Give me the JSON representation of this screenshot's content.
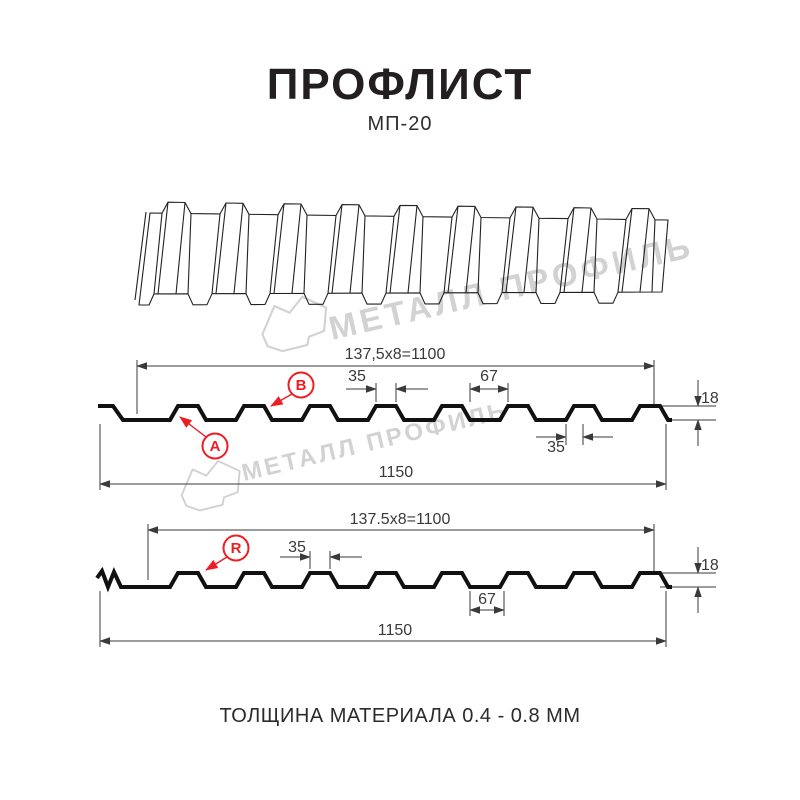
{
  "header": {
    "title": "ПРОФЛИСТ",
    "subtitle": "МП-20"
  },
  "footer": {
    "thickness_note": "ТОЛЩИНА МАТЕРИАЛА 0.4 - 0.8 ММ"
  },
  "watermark": {
    "text": "МЕТАЛЛ ПРОФИЛЬ",
    "color": "#d2d2d2",
    "gem_icon": "brand-gem-icon"
  },
  "colors": {
    "accent_red": "#ee1c23",
    "line_black": "#1a1a1a",
    "dim_gray": "#3a3a3a"
  },
  "diagram_top": {
    "coverage_width": "137,5x8=1100",
    "rib_top_width": "35",
    "valley_width": "67",
    "rib_bottom_width": "35",
    "profile_height": "18",
    "overall_width": "1150",
    "labels": {
      "a": "A",
      "b": "B"
    }
  },
  "diagram_bottom": {
    "coverage_width": "137.5x8=1100",
    "rib_top_width": "35",
    "valley_width": "67",
    "profile_height": "18",
    "overall_width": "1150",
    "labels": {
      "r": "R"
    }
  }
}
